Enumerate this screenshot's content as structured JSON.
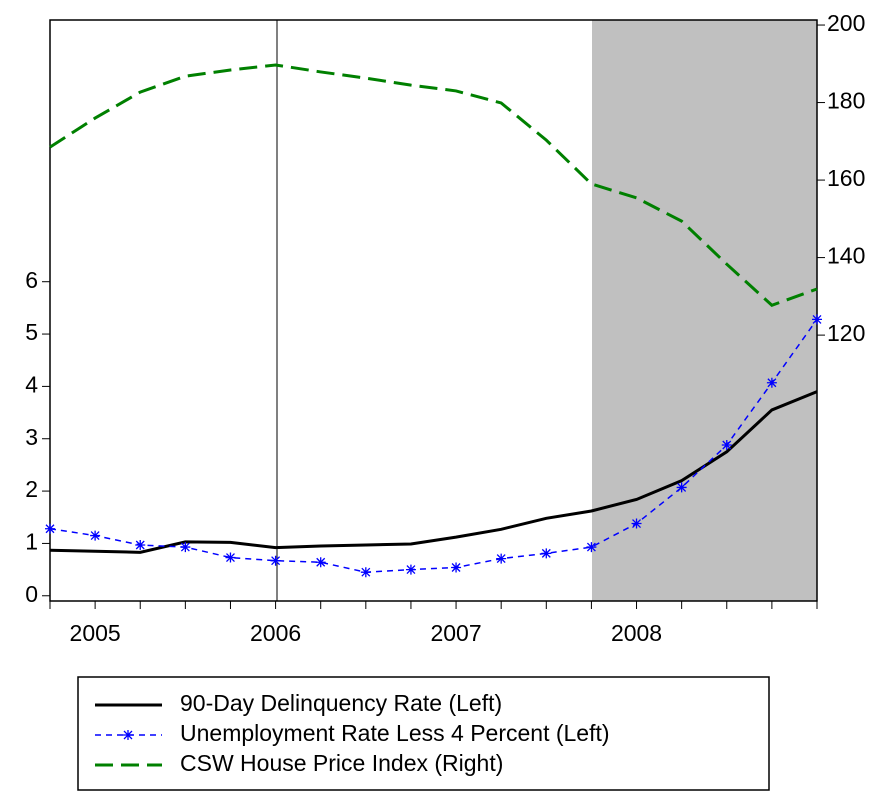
{
  "chart_data": {
    "type": "line",
    "categories": [
      null,
      "2005",
      null,
      null,
      null,
      "2006",
      null,
      null,
      null,
      "2007",
      null,
      null,
      null,
      "2008",
      null,
      null,
      null,
      null
    ],
    "series": [
      {
        "name": "90-Day Delinquency Rate (Left)",
        "color": "#000000",
        "style": "solid",
        "values": [
          0.87,
          0.85,
          0.83,
          1.03,
          1.02,
          0.92,
          0.95,
          0.97,
          0.99,
          1.12,
          1.27,
          1.48,
          1.62,
          1.84,
          2.2,
          2.75,
          3.55,
          3.9
        ]
      },
      {
        "name": "Unemployment Rate Less 4 Percent (Left)",
        "color": "#0000ff",
        "style": "dash-star",
        "values": [
          1.28,
          1.15,
          0.97,
          0.93,
          0.73,
          0.67,
          0.64,
          0.45,
          0.5,
          0.54,
          0.71,
          0.81,
          0.93,
          1.38,
          2.07,
          2.88,
          4.07,
          5.28
        ]
      },
      {
        "name": "CSW House Price Index (Right)",
        "color": "#008000",
        "style": "long-dash",
        "axis": "y2",
        "values": [
          168.5,
          176,
          182.7,
          186.8,
          188.4,
          189.7,
          187.9,
          186.3,
          184.5,
          183,
          179.9,
          170.3,
          159,
          155.4,
          149.4,
          138.3,
          127.7,
          131.9
        ]
      }
    ],
    "ylim": [
      -0.1,
      11
    ],
    "yticks": [
      0,
      1,
      2,
      3,
      4,
      5,
      6
    ],
    "y2lim": [
      51.4,
      201.3
    ],
    "y2ticks": [
      120,
      140,
      160,
      180,
      200
    ]
  }
}
